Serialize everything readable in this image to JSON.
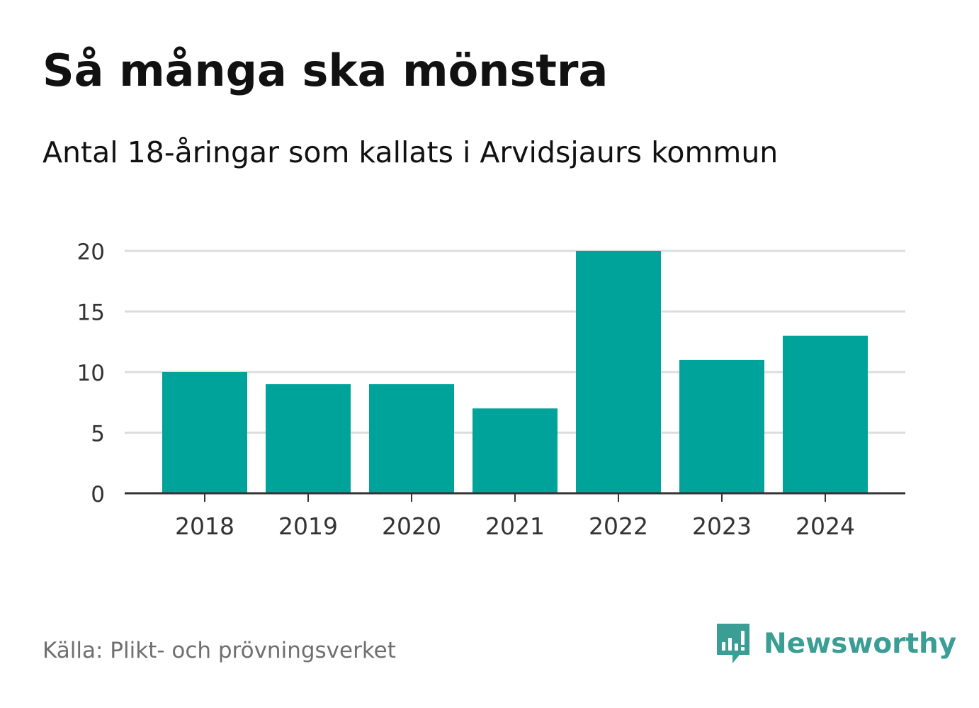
{
  "chart_data": {
    "type": "bar",
    "title": "Så många ska mönstra",
    "subtitle": "Antal 18-åringar som kallats i Arvidsjaurs kommun",
    "categories": [
      "2018",
      "2019",
      "2020",
      "2021",
      "2022",
      "2023",
      "2024"
    ],
    "values": [
      10,
      9,
      9,
      7,
      20,
      11,
      13
    ],
    "ylim": [
      0,
      20
    ],
    "yticks": [
      0,
      5,
      10,
      15,
      20
    ],
    "grid": true,
    "bar_color": "#00a39a"
  },
  "footer": {
    "source": "Källa: Plikt- och prövningsverket",
    "brand": "Newsworthy"
  },
  "colors": {
    "brand": "#3a9e94",
    "grid": "#dddddd",
    "axis": "#333333"
  },
  "icons": {
    "brand_logo": "newsworthy-logo-icon"
  }
}
